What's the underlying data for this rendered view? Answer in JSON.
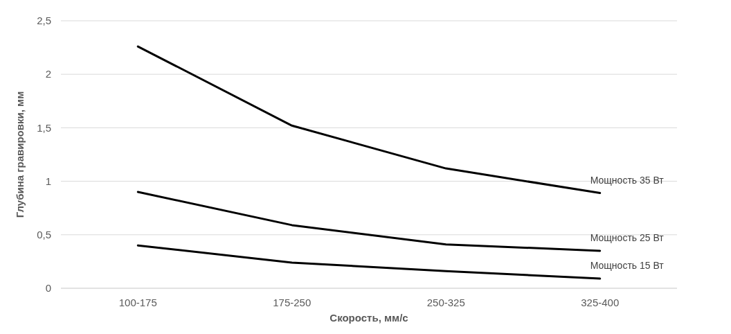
{
  "chart_data": {
    "type": "line",
    "xlabel": "Скорость, мм/с",
    "ylabel": "Глубина гравировки, мм",
    "categories": [
      "100-175",
      "175-250",
      "250-325",
      "325-400"
    ],
    "ylim": [
      0,
      2.5
    ],
    "yticks": [
      {
        "value": 0,
        "label": "0"
      },
      {
        "value": 0.5,
        "label": "0,5"
      },
      {
        "value": 1,
        "label": "1"
      },
      {
        "value": 1.5,
        "label": "1,5"
      },
      {
        "value": 2,
        "label": "2"
      },
      {
        "value": 2.5,
        "label": "2,5"
      }
    ],
    "grid": "y",
    "marker": "none",
    "line_style": "solid",
    "series": [
      {
        "name": "Мощность 35 Вт",
        "color": "#000000",
        "values": [
          2.26,
          1.52,
          1.12,
          0.89
        ]
      },
      {
        "name": "Мощность 25 Вт",
        "color": "#000000",
        "values": [
          0.9,
          0.59,
          0.41,
          0.35
        ]
      },
      {
        "name": "Мощность 15 Вт",
        "color": "#000000",
        "values": [
          0.4,
          0.24,
          0.16,
          0.09
        ]
      }
    ]
  }
}
